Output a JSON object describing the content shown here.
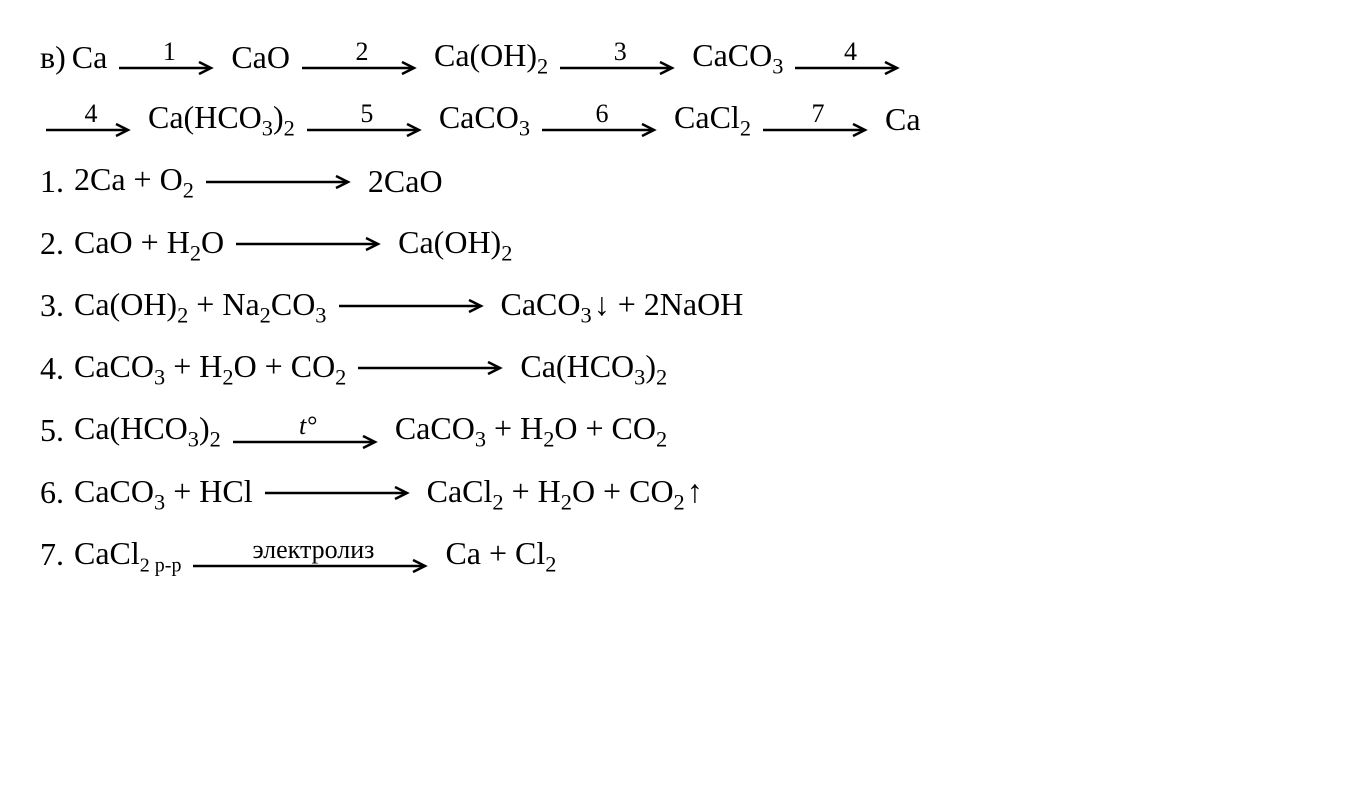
{
  "font": {
    "family": "Times New Roman",
    "size_pt": 32,
    "color": "#000000"
  },
  "background_color": "#ffffff",
  "arrow_color": "#000000",
  "arrow_stroke_width": 2.5,
  "scheme": {
    "prefix": "в)",
    "chain": [
      {
        "species": "Ca"
      },
      {
        "arrow_label": "1"
      },
      {
        "species": "CaO"
      },
      {
        "arrow_label": "2"
      },
      {
        "species": "Ca(OH)",
        "sub": "2"
      },
      {
        "arrow_label": "3"
      },
      {
        "species": "CaCO",
        "sub": "3"
      },
      {
        "arrow_label": "4"
      },
      {
        "linebreak": true
      },
      {
        "arrow_label": "4"
      },
      {
        "species": "Ca(HCO",
        "sub": "3",
        "tail": ")",
        "sub2": "2"
      },
      {
        "arrow_label": "5"
      },
      {
        "species": "CaCO",
        "sub": "3"
      },
      {
        "arrow_label": "6"
      },
      {
        "species": "CaCl",
        "sub": "2"
      },
      {
        "arrow_label": "7"
      },
      {
        "species": "Ca"
      }
    ]
  },
  "equations": [
    {
      "n": "1.",
      "lhs": "2Ca + O|2|",
      "rhs": "2CaO",
      "arrow_label": ""
    },
    {
      "n": "2.",
      "lhs": "CaO + H|2|O",
      "rhs": "Ca(OH)|2|",
      "arrow_label": ""
    },
    {
      "n": "3.",
      "lhs": "Ca(OH)|2| + Na|2|CO|3|",
      "rhs": "CaCO|3|↓ + 2NaOH",
      "arrow_label": ""
    },
    {
      "n": "4.",
      "lhs": "CaCO|3| + H|2|O + CO|2|",
      "rhs": "Ca(HCO|3|)|2|",
      "arrow_label": ""
    },
    {
      "n": "5.",
      "lhs": "Ca(HCO|3|)|2|",
      "rhs": "CaCO|3| + H|2|O + CO|2|",
      "arrow_label": "t°",
      "arrow_label_italic": true
    },
    {
      "n": "6.",
      "lhs": "CaCO|3| + HCl",
      "rhs": "CaCl|2| + H|2|O + CO|2|↑",
      "arrow_label": ""
    },
    {
      "n": "7.",
      "lhs": "CaCl|2 p-p|",
      "rhs": "Ca + Cl|2|",
      "arrow_label": "электролиз",
      "arrow_long": true
    }
  ]
}
